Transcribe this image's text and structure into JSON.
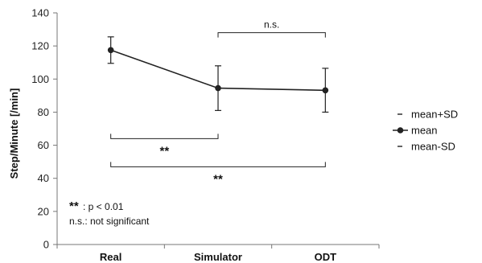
{
  "chart_data": {
    "type": "line",
    "title": "",
    "xlabel": "",
    "ylabel": "Step/Minute [/min]",
    "ylim": [
      0,
      140
    ],
    "yticks": [
      0,
      20,
      40,
      60,
      80,
      100,
      120,
      140
    ],
    "categories": [
      "Real",
      "Simulator",
      "ODT"
    ],
    "series": [
      {
        "name": "mean",
        "values": [
          117.5,
          94.5,
          93.2
        ]
      },
      {
        "name": "mean+SD",
        "values": [
          125.5,
          108,
          106.5
        ]
      },
      {
        "name": "mean-SD",
        "values": [
          109.5,
          81,
          80
        ]
      }
    ],
    "legend": {
      "position": "right",
      "entries": [
        "mean+SD",
        "mean",
        "mean-SD"
      ]
    },
    "grid": false,
    "annotations": [
      {
        "from": "Simulator",
        "to": "ODT",
        "label": "n.s.",
        "y": 128,
        "direction": "down"
      },
      {
        "from": "Real",
        "to": "Simulator",
        "label": "**",
        "y": 64,
        "direction": "up"
      },
      {
        "from": "Real",
        "to": "ODT",
        "label": "**",
        "y": 47,
        "direction": "up"
      }
    ],
    "note": {
      "stars": "**",
      "line1": ": p < 0.01",
      "line2": "n.s.: not significant"
    }
  }
}
